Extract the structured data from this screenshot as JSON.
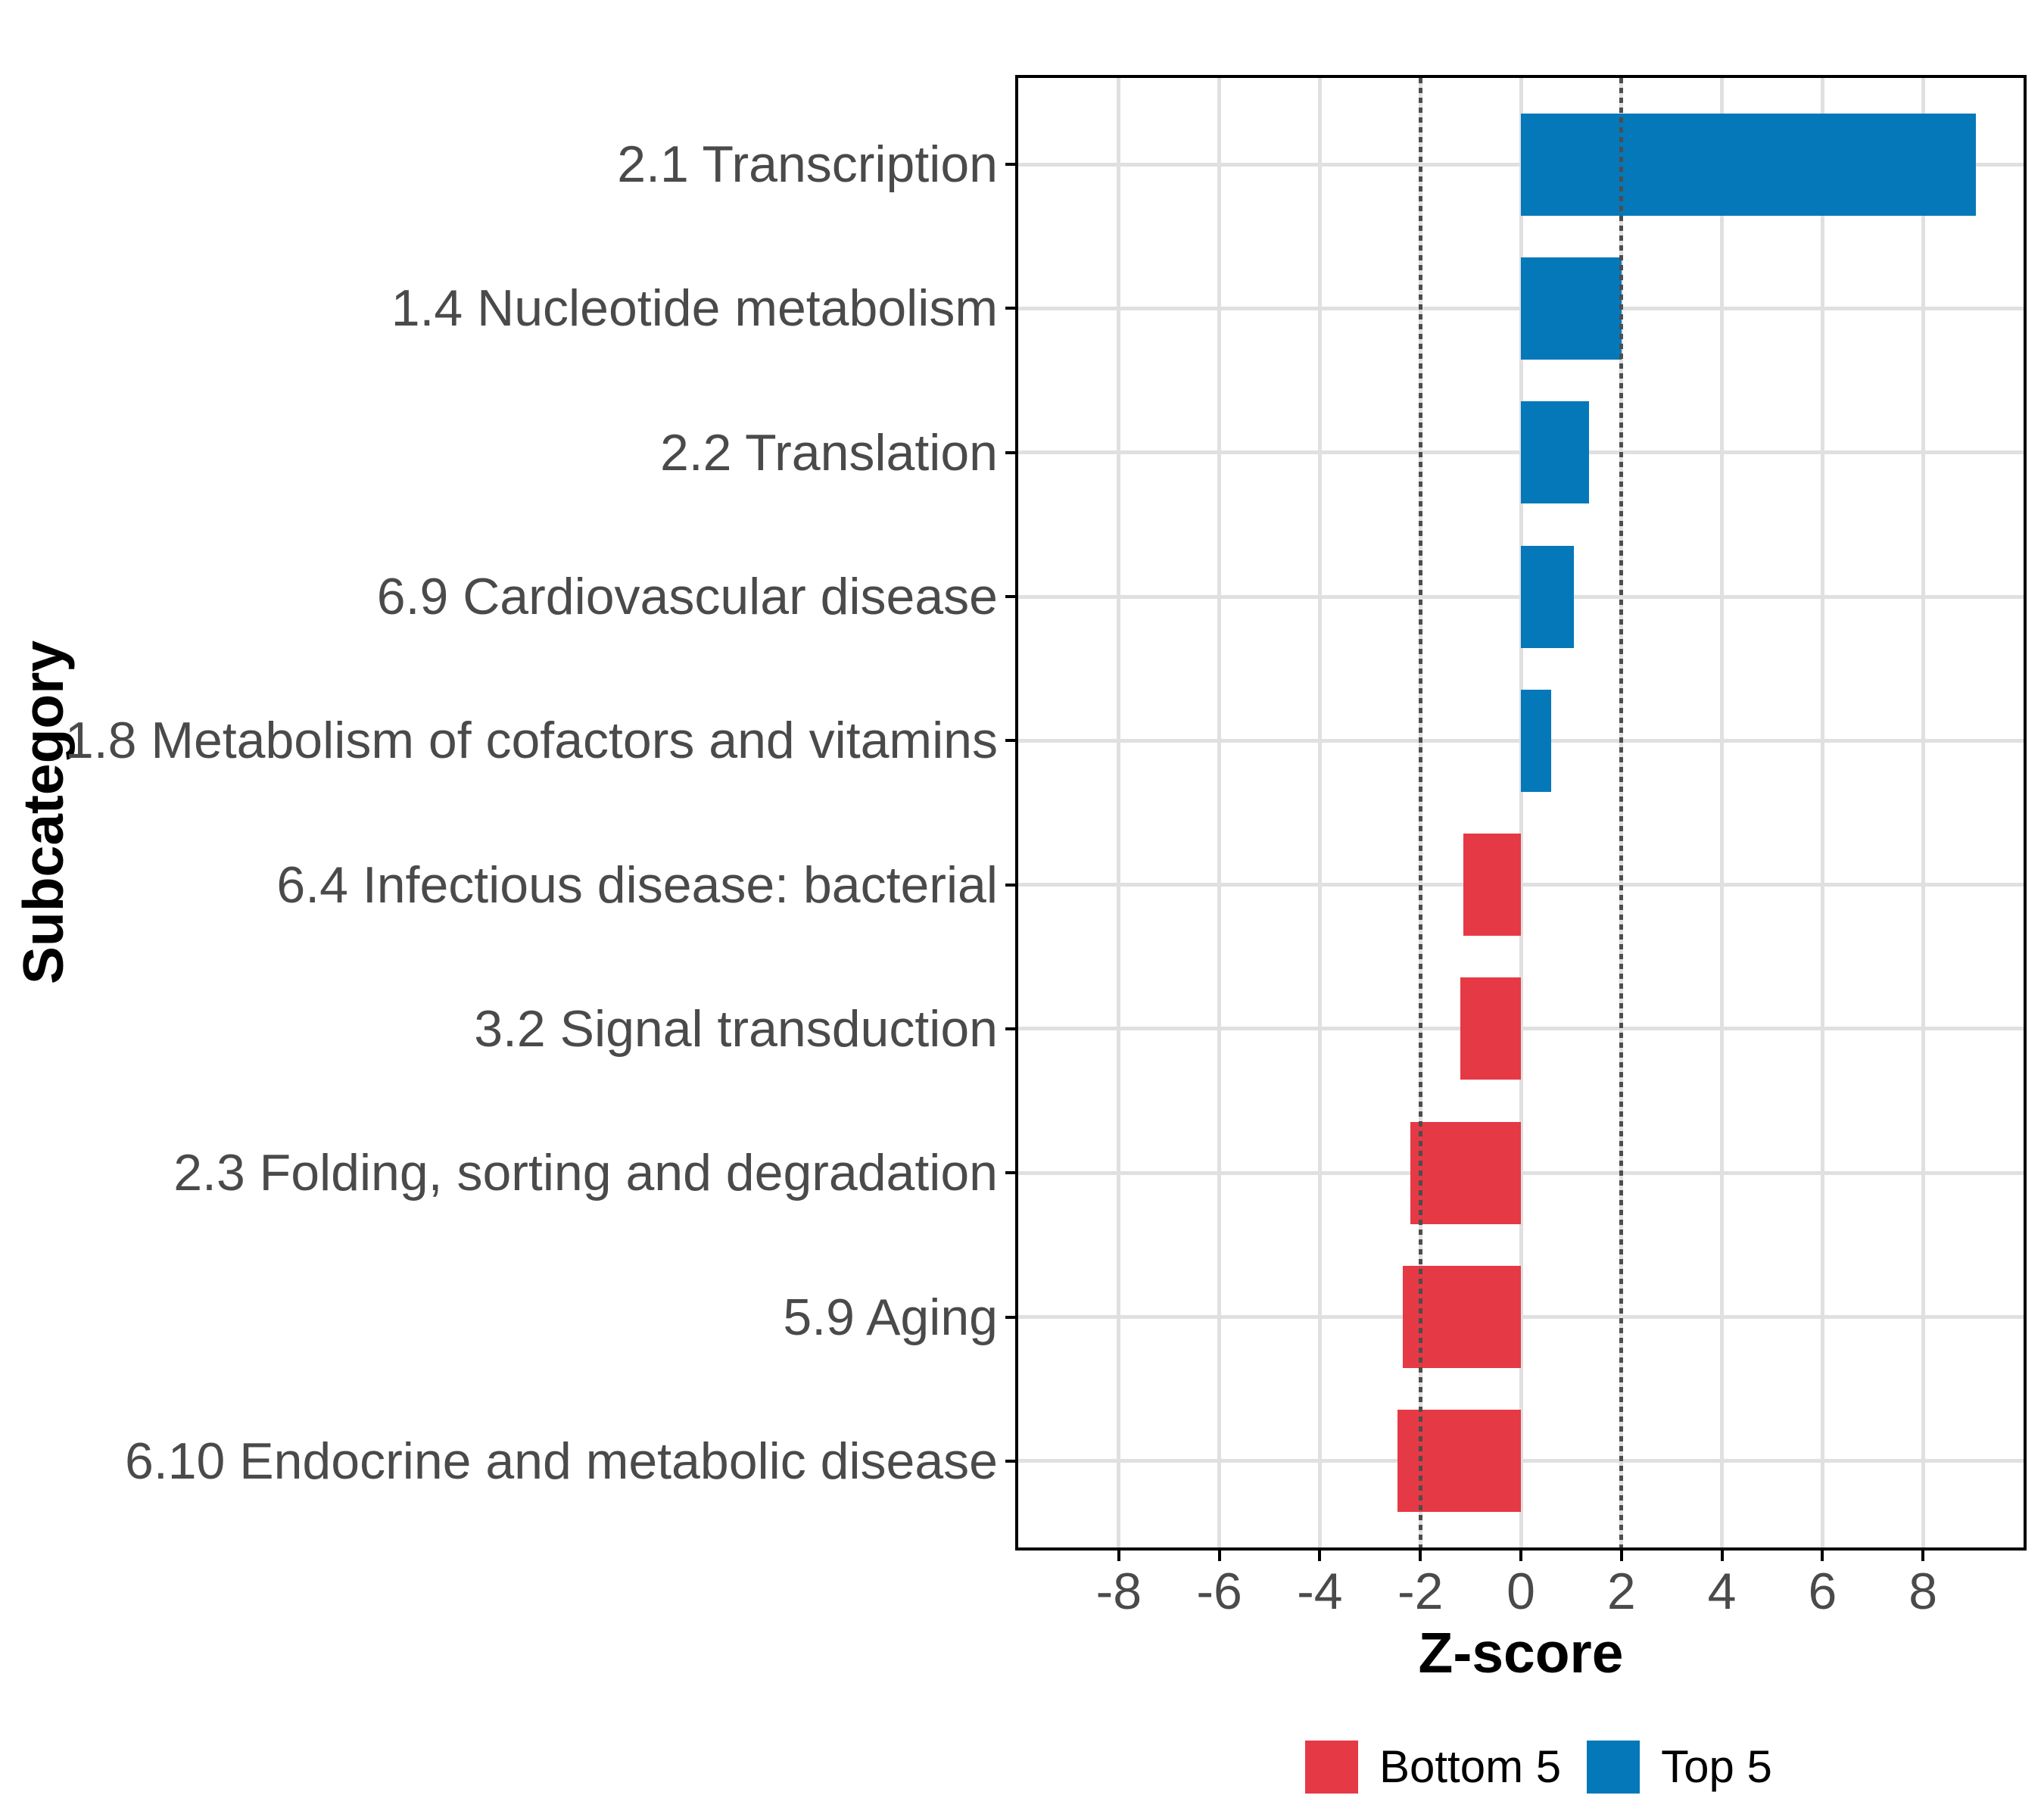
{
  "chart_data": {
    "type": "bar",
    "orientation": "horizontal",
    "title": "",
    "xlabel": "Z-score",
    "ylabel": "Subcategory",
    "xlim": [
      -10,
      10
    ],
    "x_ticks": [
      -8,
      -6,
      -4,
      -2,
      0,
      2,
      4,
      6,
      8
    ],
    "reference_lines": [
      -2,
      2
    ],
    "grid": true,
    "legend_position": "bottom",
    "categories": [
      "2.1 Transcription",
      "1.4 Nucleotide metabolism",
      "2.2 Translation",
      "6.9 Cardiovascular disease",
      "1.8 Metabolism of cofactors and vitamins",
      "6.4 Infectious disease: bacterial",
      "3.2 Signal transduction",
      "2.3 Folding, sorting and degradation",
      "5.9 Aging",
      "6.10 Endocrine and metabolic disease"
    ],
    "values": [
      9.05,
      2.0,
      1.35,
      1.05,
      0.6,
      -1.15,
      -1.2,
      -2.2,
      -2.35,
      -2.45
    ],
    "groups": [
      "Top 5",
      "Top 5",
      "Top 5",
      "Top 5",
      "Top 5",
      "Bottom 5",
      "Bottom 5",
      "Bottom 5",
      "Bottom 5",
      "Bottom 5"
    ],
    "legend": [
      {
        "label": "Bottom 5",
        "color": "#E63946"
      },
      {
        "label": "Top 5",
        "color": "#0578B9"
      }
    ],
    "colors": {
      "top5": "#0578B9",
      "bottom5": "#E63946",
      "grid": "#E0E0E0",
      "reference_line": "#4D4D4D",
      "axis_text": "#4A4A4A",
      "axis_title": "#000000",
      "panel_border": "#000000",
      "background": "#FFFFFF"
    }
  }
}
